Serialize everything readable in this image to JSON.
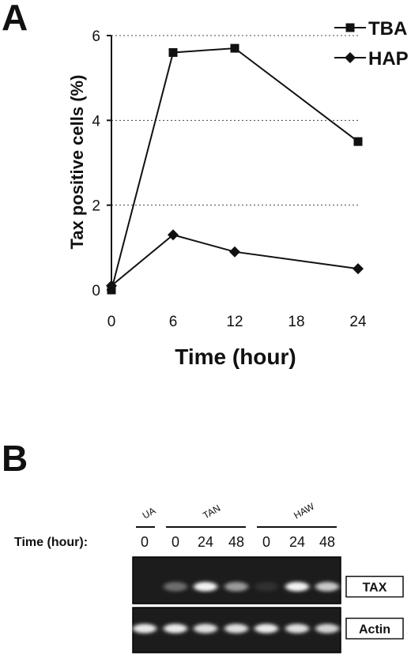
{
  "panel_a_label": "A",
  "panel_b_label": "B",
  "chart_data": {
    "type": "line",
    "xlabel": "Time (hour)",
    "ylabel": "Tax positive cells (%)",
    "x": [
      0,
      6,
      12,
      24
    ],
    "xticks": [
      0,
      6,
      12,
      18,
      24
    ],
    "yticks": [
      0,
      2,
      4,
      6
    ],
    "xlim": [
      0,
      24
    ],
    "ylim": [
      0,
      6
    ],
    "grid": "horizontal dotted",
    "legend": "top-right",
    "series": [
      {
        "name": "TBA",
        "marker": "square",
        "color": "#111111",
        "values": [
          0.0,
          5.6,
          5.7,
          3.5
        ]
      },
      {
        "name": "HAP",
        "marker": "diamond",
        "color": "#111111",
        "values": [
          0.1,
          1.3,
          0.9,
          0.5
        ]
      }
    ]
  },
  "gel": {
    "time_label": "Time (hour):",
    "groups": [
      {
        "label": "UA",
        "lanes": [
          "0"
        ]
      },
      {
        "label": "TAN",
        "lanes": [
          "0",
          "24",
          "48"
        ]
      },
      {
        "label": "HAW",
        "lanes": [
          "0",
          "24",
          "48"
        ]
      }
    ],
    "rows": [
      {
        "name": "TAX",
        "intensities": [
          0.0,
          0.45,
          0.95,
          0.6,
          0.15,
          0.95,
          0.75
        ]
      },
      {
        "name": "Actin",
        "intensities": [
          0.9,
          0.9,
          0.85,
          0.85,
          0.9,
          0.85,
          0.8
        ]
      }
    ]
  }
}
